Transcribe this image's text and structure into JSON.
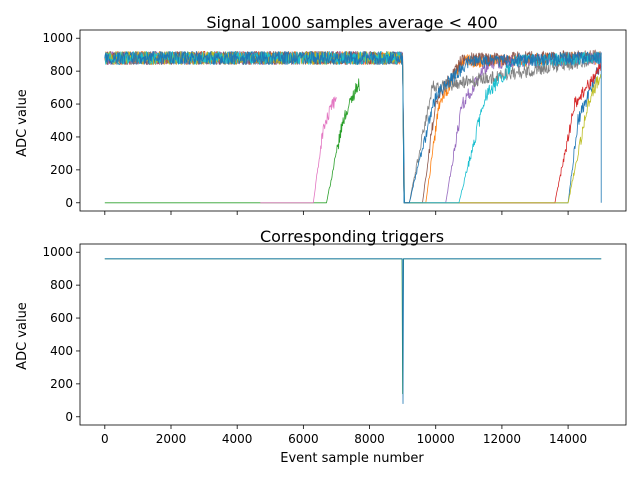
{
  "chart_data": [
    {
      "type": "line",
      "title": "Signal 1000 samples average < 400",
      "xlabel": "",
      "ylabel": "ADC value",
      "xlim": [
        -750,
        15750
      ],
      "ylim": [
        -50,
        1050
      ],
      "x_ticks": [
        0,
        2000,
        4000,
        6000,
        8000,
        10000,
        12000,
        14000
      ],
      "x_tick_labels_visible": false,
      "y_ticks": [
        0,
        200,
        400,
        600,
        800,
        1000
      ],
      "y_tick_labels": [
        "0",
        "200",
        "400",
        "600",
        "800",
        "1000"
      ],
      "grid": false,
      "noise_amplitude": 40,
      "series": [
        {
          "color": "#1f77b4",
          "x": [
            0,
            9000,
            9060,
            14000,
            14300,
            15000
          ],
          "y": [
            880,
            880,
            0,
            0,
            500,
            850
          ]
        },
        {
          "color": "#ff7f0e",
          "x": [
            0,
            9000,
            9040,
            9700,
            10100,
            10800,
            15000
          ],
          "y": [
            880,
            880,
            0,
            0,
            600,
            860,
            880
          ]
        },
        {
          "color": "#2ca02c",
          "x": [
            0,
            6700,
            7200,
            7600,
            7700
          ],
          "y": [
            0,
            0,
            500,
            700,
            720
          ]
        },
        {
          "color": "#d62728",
          "x": [
            0,
            9000,
            9040,
            13600,
            14200,
            15000
          ],
          "y": [
            880,
            880,
            0,
            0,
            600,
            830
          ]
        },
        {
          "color": "#9467bd",
          "x": [
            0,
            9000,
            9040,
            10300,
            10800,
            11600,
            15000
          ],
          "y": [
            880,
            880,
            0,
            0,
            600,
            850,
            880
          ]
        },
        {
          "color": "#8c564b",
          "x": [
            0,
            9000,
            9040,
            9600,
            10000,
            10800,
            15000
          ],
          "y": [
            880,
            880,
            0,
            0,
            620,
            870,
            890
          ]
        },
        {
          "color": "#e377c2",
          "x": [
            4700,
            6300,
            6600,
            7000
          ],
          "y": [
            0,
            0,
            450,
            650
          ]
        },
        {
          "color": "#7f7f7f",
          "x": [
            0,
            9000,
            9040,
            9200,
            9900,
            15000
          ],
          "y": [
            880,
            880,
            0,
            0,
            700,
            880
          ]
        },
        {
          "color": "#bcbd22",
          "x": [
            0,
            9000,
            9040,
            14000,
            14600,
            15000
          ],
          "y": [
            880,
            880,
            0,
            0,
            600,
            790
          ]
        },
        {
          "color": "#17becf",
          "x": [
            0,
            9000,
            9040,
            10700,
            11500,
            12400,
            15000
          ],
          "y": [
            880,
            880,
            0,
            0,
            650,
            860,
            880
          ]
        },
        {
          "color": "#1f77b4",
          "x": [
            0,
            9000,
            9040,
            9200,
            10000,
            11000,
            15000,
            15000
          ],
          "y": [
            880,
            880,
            0,
            0,
            650,
            860,
            880,
            0
          ]
        }
      ]
    },
    {
      "type": "line",
      "title": "Corresponding triggers",
      "xlabel": "Event sample number",
      "ylabel": "ADC value",
      "xlim": [
        -750,
        15750
      ],
      "ylim": [
        -50,
        1050
      ],
      "x_ticks": [
        0,
        2000,
        4000,
        6000,
        8000,
        10000,
        12000,
        14000
      ],
      "x_tick_labels": [
        "0",
        "2000",
        "4000",
        "6000",
        "8000",
        "10000",
        "12000",
        "14000"
      ],
      "y_ticks": [
        0,
        200,
        400,
        600,
        800,
        1000
      ],
      "y_tick_labels": [
        "0",
        "200",
        "400",
        "600",
        "800",
        "1000"
      ],
      "grid": false,
      "series": [
        {
          "color": "#2ca02c",
          "x": [
            0,
            8980,
            9000,
            9020,
            15000
          ],
          "y": [
            960,
            960,
            140,
            960,
            960
          ]
        },
        {
          "color": "#1f77b4",
          "x": [
            0,
            8990,
            9010,
            9030,
            15000
          ],
          "y": [
            960,
            960,
            80,
            960,
            960
          ]
        }
      ]
    }
  ]
}
